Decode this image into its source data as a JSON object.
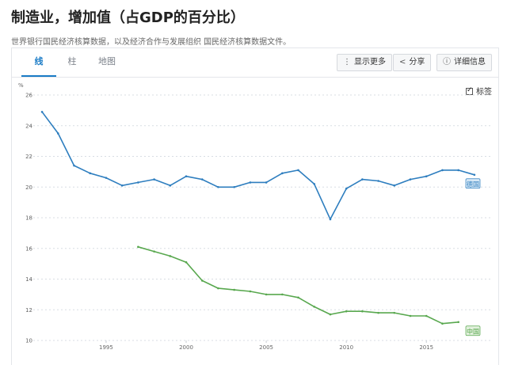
{
  "header": {
    "title": "制造业，增加值（占GDP的百分比）",
    "subtitle": "世界银行国民经济核算数据，以及经济合作与发展组织 国民经济核算数据文件。"
  },
  "tabs": [
    {
      "label": "线",
      "active": true
    },
    {
      "label": "柱",
      "active": false
    },
    {
      "label": "地图",
      "active": false
    }
  ],
  "toolbar": {
    "more_label": "显示更多",
    "share_label": "分享",
    "details_label": "详细信息"
  },
  "labels_toggle": {
    "label": "标签",
    "checked": true
  },
  "colors": {
    "accent": "#1a7bc6",
    "series_germany": "#2e7ebf",
    "series_china": "#59a84f"
  },
  "chart_data": {
    "type": "line",
    "unit": "%",
    "ylim": [
      10,
      26
    ],
    "yticks": [
      10,
      12,
      14,
      16,
      18,
      20,
      22,
      24,
      26
    ],
    "xlim": [
      1990.6,
      2018.6
    ],
    "xticks": [
      "1995",
      "2000",
      "2005",
      "2010",
      "2015"
    ],
    "grid": true,
    "series": [
      {
        "name": "德国",
        "color": "#2e7ebf",
        "x": [
          1991,
          1992,
          1993,
          1994,
          1995,
          1996,
          1997,
          1998,
          1999,
          2000,
          2001,
          2002,
          2003,
          2004,
          2005,
          2006,
          2007,
          2008,
          2009,
          2010,
          2011,
          2012,
          2013,
          2014,
          2015,
          2016,
          2017,
          2018
        ],
        "values": [
          24.9,
          23.5,
          21.4,
          20.9,
          20.6,
          20.1,
          20.3,
          20.5,
          20.1,
          20.7,
          20.5,
          20.0,
          20.0,
          20.3,
          20.3,
          20.9,
          21.1,
          20.2,
          17.9,
          19.9,
          20.5,
          20.4,
          20.1,
          20.5,
          20.7,
          21.1,
          21.1,
          20.8
        ]
      },
      {
        "name": "中国",
        "color": "#59a84f",
        "x": [
          1997,
          1998,
          1999,
          2000,
          2001,
          2002,
          2003,
          2004,
          2005,
          2006,
          2007,
          2008,
          2009,
          2010,
          2011,
          2012,
          2013,
          2014,
          2015,
          2016,
          2017
        ],
        "values": [
          16.1,
          15.8,
          15.5,
          15.1,
          13.9,
          13.4,
          13.3,
          13.2,
          13.0,
          13.0,
          12.8,
          12.2,
          11.7,
          11.9,
          11.9,
          11.8,
          11.8,
          11.6,
          11.6,
          11.1,
          11.2
        ]
      }
    ]
  }
}
